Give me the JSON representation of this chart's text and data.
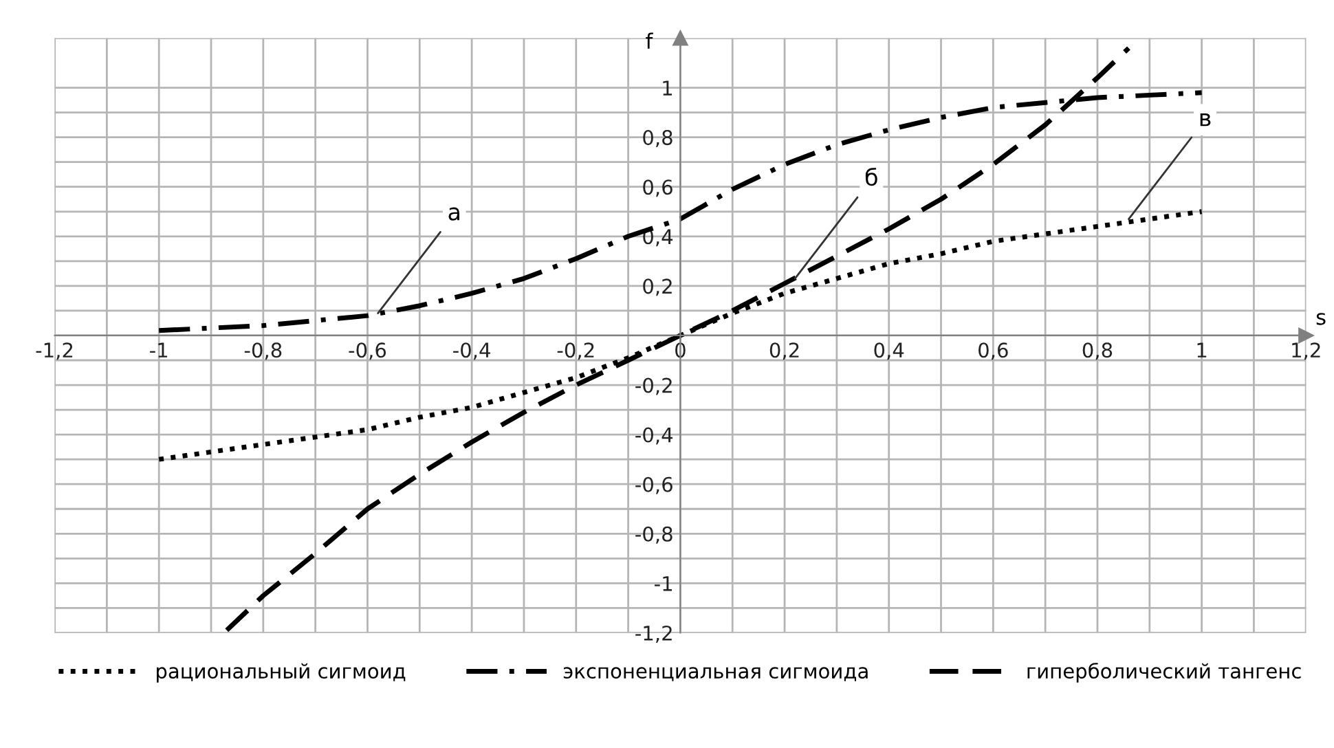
{
  "chart_data": {
    "type": "line",
    "xlabel": "s",
    "ylabel": "f",
    "xlim": [
      -1.2,
      1.2
    ],
    "ylim": [
      -1.2,
      1.2
    ],
    "xticks": [
      {
        "value": -1.2,
        "label": "-1,2"
      },
      -1,
      {
        "value": -0.8,
        "label": "-0,8"
      },
      {
        "value": -0.6,
        "label": "-0,6"
      },
      {
        "value": -0.4,
        "label": "-0,4"
      },
      {
        "value": -0.2,
        "label": "-0,2"
      },
      0,
      {
        "value": 0.2,
        "label": "0,2"
      },
      {
        "value": 0.4,
        "label": "0,4"
      },
      {
        "value": 0.6,
        "label": "0,6"
      },
      {
        "value": 0.8,
        "label": "0,8"
      },
      1,
      {
        "value": 1.2,
        "label": "1,2"
      }
    ],
    "yticks": [
      {
        "value": -1.2,
        "label": "-1,2"
      },
      -1,
      {
        "value": -0.8,
        "label": "-0,8"
      },
      {
        "value": -0.6,
        "label": "-0,6"
      },
      {
        "value": -0.4,
        "label": "-0,4"
      },
      {
        "value": -0.2,
        "label": "-0,2"
      },
      {
        "value": 0,
        "label": null
      },
      {
        "value": 0.2,
        "label": "0,2"
      },
      {
        "value": 0.4,
        "label": "0,4"
      },
      {
        "value": 0.6,
        "label": "0,6"
      },
      {
        "value": 0.8,
        "label": "0,8"
      },
      1
    ],
    "grid": true,
    "legend": "bottom",
    "marker": "none",
    "series": [
      {
        "name": "рациональный сигмоид",
        "color": "#000000",
        "line_style": "dotted",
        "x": [
          -1,
          -0.9,
          -0.8,
          -0.7,
          -0.6,
          -0.5,
          -0.4,
          -0.3,
          -0.2,
          -0.1,
          0,
          0.1,
          0.2,
          0.3,
          0.4,
          0.5,
          0.6,
          0.7,
          0.8,
          0.9,
          1
        ],
        "values": [
          -0.5,
          -0.47,
          -0.44,
          -0.41,
          -0.38,
          -0.33,
          -0.29,
          -0.23,
          -0.17,
          -0.09,
          0,
          0.09,
          0.17,
          0.23,
          0.29,
          0.33,
          0.38,
          0.41,
          0.44,
          0.47,
          0.5
        ]
      },
      {
        "name": "экспоненциальная сигмоида",
        "color": "#000000",
        "line_style": "dashdot",
        "x": [
          -1,
          -0.9,
          -0.8,
          -0.7,
          -0.6,
          -0.5,
          -0.4,
          -0.3,
          -0.2,
          -0.1,
          0,
          0.1,
          0.2,
          0.3,
          0.4,
          0.5,
          0.6,
          0.7,
          0.8,
          0.9,
          1
        ],
        "values": [
          0.02,
          0.03,
          0.04,
          0.06,
          0.08,
          0.12,
          0.17,
          0.23,
          0.31,
          0.4,
          0.47,
          0.59,
          0.69,
          0.77,
          0.83,
          0.88,
          0.92,
          0.94,
          0.96,
          0.97,
          0.98
        ]
      },
      {
        "name": "гиперболический тангенс",
        "color": "#000000",
        "line_style": "dashed",
        "x": [
          -0.87,
          -0.8,
          -0.7,
          -0.6,
          -0.5,
          -0.4,
          -0.3,
          -0.2,
          -0.1,
          0,
          0.1,
          0.2,
          0.3,
          0.4,
          0.5,
          0.6,
          0.7,
          0.8,
          0.86
        ],
        "values": [
          -1.19,
          -1.05,
          -0.88,
          -0.7,
          -0.56,
          -0.43,
          -0.31,
          -0.2,
          -0.1,
          0,
          0.1,
          0.21,
          0.32,
          0.43,
          0.55,
          0.69,
          0.85,
          1.04,
          1.16
        ]
      }
    ],
    "annotations": [
      {
        "text": "а",
        "x": -0.58,
        "y": 0.09
      },
      {
        "text": "б",
        "x": 0.22,
        "y": 0.23
      },
      {
        "text": "в",
        "x": 0.86,
        "y": 0.47
      }
    ]
  }
}
